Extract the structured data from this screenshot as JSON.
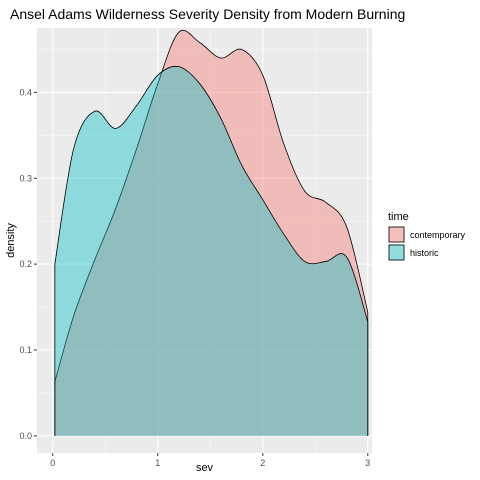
{
  "chart_data": {
    "type": "area",
    "title": "Ansel Adams Wilderness Severity Density from Modern Burning",
    "xlabel": "sev",
    "ylabel": "density",
    "xlim": [
      -0.15,
      3.04
    ],
    "ylim": [
      -0.02,
      0.475
    ],
    "x_ticks": [
      0,
      1,
      2,
      3
    ],
    "y_ticks": [
      0.0,
      0.1,
      0.2,
      0.3,
      0.4
    ],
    "x_tick_labels": [
      "0",
      "1",
      "2",
      "3"
    ],
    "y_tick_labels": [
      "0.0",
      "0.1",
      "0.2",
      "0.3",
      "0.4"
    ],
    "grid": true,
    "legend": {
      "title": "time",
      "position": "right"
    },
    "series": [
      {
        "name": "historic",
        "color": "#00BFC4",
        "x": [
          0.02,
          0.2,
          0.4,
          0.6,
          0.8,
          1.0,
          1.2,
          1.4,
          1.6,
          1.8,
          2.0,
          2.2,
          2.4,
          2.6,
          2.8,
          3.0
        ],
        "y": [
          0.2,
          0.335,
          0.378,
          0.358,
          0.385,
          0.42,
          0.43,
          0.41,
          0.37,
          0.315,
          0.275,
          0.235,
          0.203,
          0.203,
          0.208,
          0.133
        ]
      },
      {
        "name": "contemporary",
        "color": "#F8766D",
        "x": [
          0.02,
          0.2,
          0.4,
          0.6,
          0.8,
          1.0,
          1.2,
          1.4,
          1.6,
          1.8,
          2.0,
          2.2,
          2.4,
          2.6,
          2.8,
          3.0
        ],
        "y": [
          0.063,
          0.14,
          0.205,
          0.265,
          0.335,
          0.41,
          0.47,
          0.458,
          0.44,
          0.45,
          0.42,
          0.34,
          0.285,
          0.272,
          0.243,
          0.144
        ]
      }
    ]
  }
}
